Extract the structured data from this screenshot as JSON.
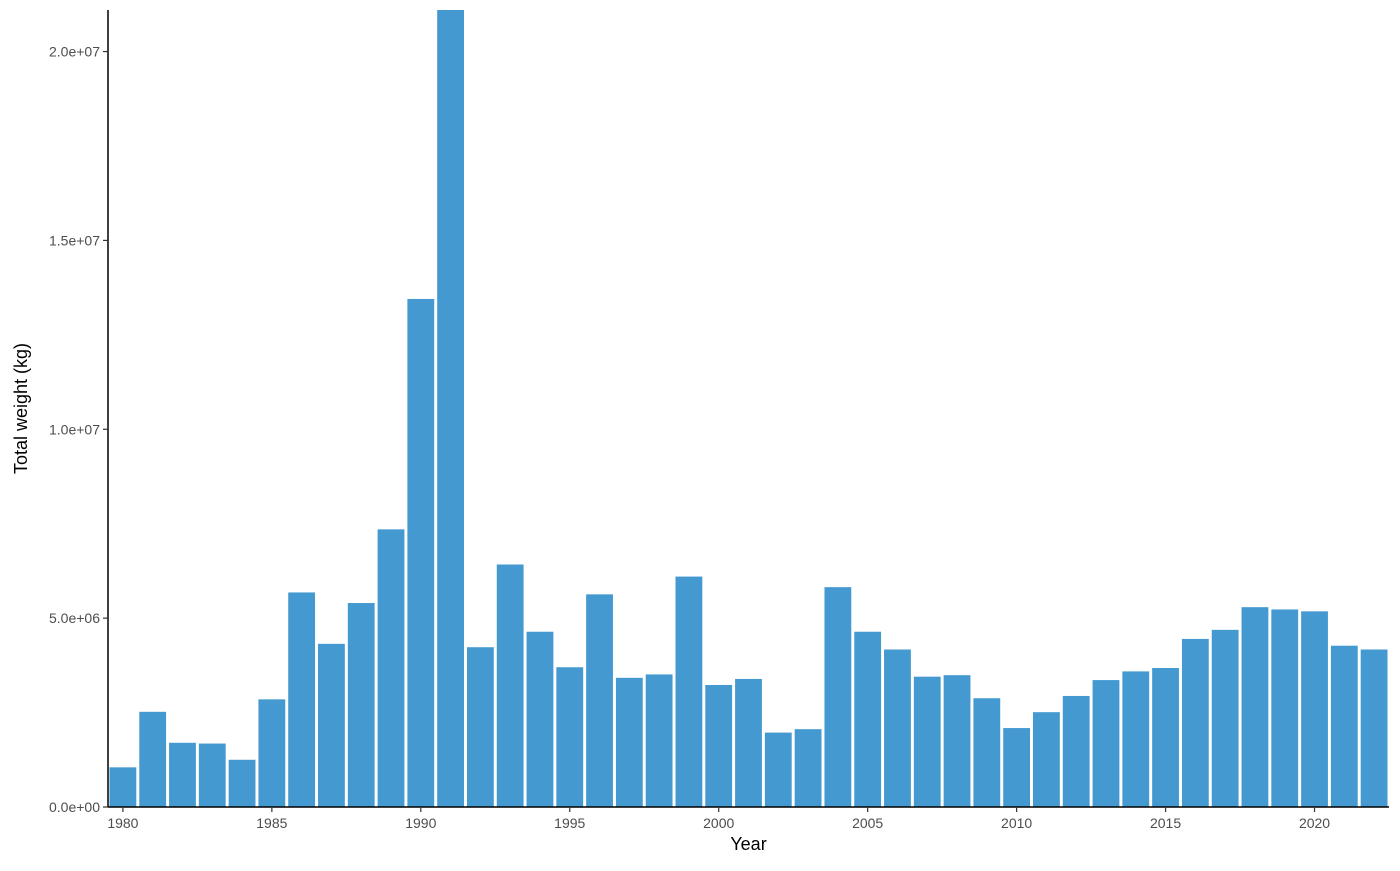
{
  "chart_data": {
    "type": "bar",
    "xlabel": "Year",
    "ylabel": "Total weight (kg)",
    "bar_color": "#4499d0",
    "xlim": [
      1979.5,
      2022.5
    ],
    "ylim": [
      0,
      21100000
    ],
    "x_ticks": [
      1980,
      1985,
      1990,
      1995,
      2000,
      2005,
      2010,
      2015,
      2020
    ],
    "x_tick_labels": [
      "1980",
      "1985",
      "1990",
      "1995",
      "2000",
      "2005",
      "2010",
      "2015",
      "2020"
    ],
    "y_ticks": [
      0,
      5000000,
      10000000,
      15000000,
      20000000
    ],
    "y_tick_labels": [
      "0.0e+00",
      "5.0e+06",
      "1.0e+07",
      "1.5e+07",
      "2.0e+07"
    ],
    "grid": false,
    "legend": "none",
    "x": [
      1980,
      1981,
      1982,
      1983,
      1984,
      1985,
      1986,
      1987,
      1988,
      1989,
      1990,
      1991,
      1992,
      1993,
      1994,
      1995,
      1996,
      1997,
      1998,
      1999,
      2000,
      2001,
      2002,
      2003,
      2004,
      2005,
      2006,
      2007,
      2008,
      2009,
      2010,
      2011,
      2012,
      2013,
      2014,
      2015,
      2016,
      2017,
      2018,
      2019,
      2020,
      2021,
      2022
    ],
    "values": [
      1050000,
      2520000,
      1700000,
      1680000,
      1250000,
      2850000,
      5680000,
      4320000,
      5400000,
      7350000,
      13450000,
      21100000,
      4230000,
      6420000,
      4640000,
      3700000,
      5630000,
      3420000,
      3510000,
      6100000,
      3230000,
      3390000,
      1970000,
      2060000,
      5820000,
      4640000,
      4170000,
      3450000,
      3490000,
      2880000,
      2090000,
      2510000,
      2940000,
      3360000,
      3590000,
      3680000,
      4450000,
      4690000,
      5290000,
      5230000,
      5180000,
      4270000,
      4170000
    ]
  }
}
